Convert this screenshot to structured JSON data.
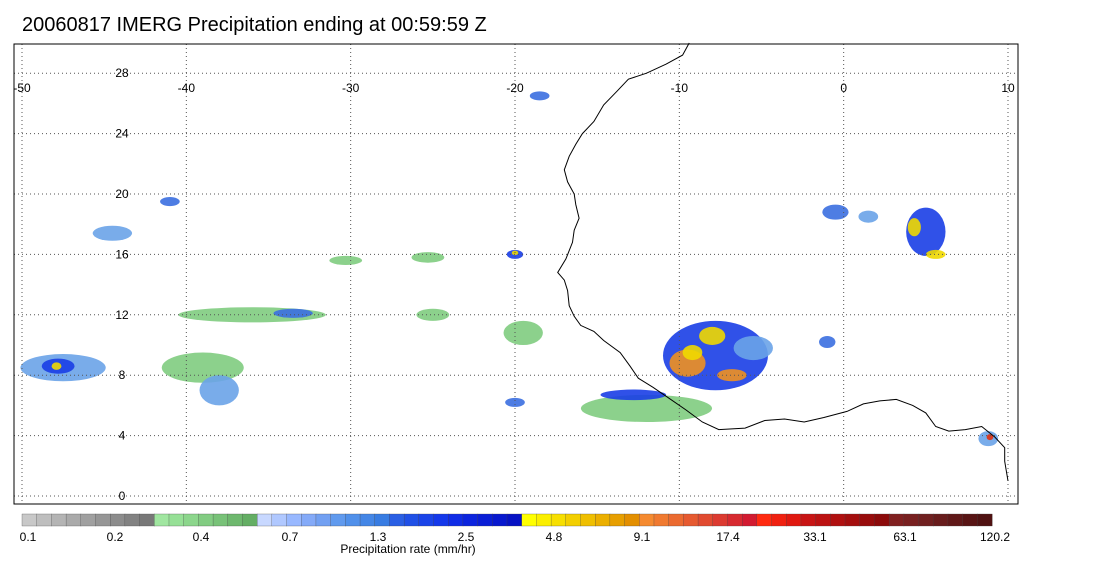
{
  "title": "20060817 IMERG Precipitation ending at 00:59:59 Z",
  "map": {
    "lon_range": [
      -50,
      10
    ],
    "lat_range": [
      -0.5,
      30
    ],
    "lon_ticks": [
      {
        "value": -50,
        "label": "-50"
      },
      {
        "value": -40,
        "label": "-40"
      },
      {
        "value": -30,
        "label": "-30"
      },
      {
        "value": -20,
        "label": "-20"
      },
      {
        "value": -10,
        "label": "-10"
      },
      {
        "value": 0,
        "label": "0"
      },
      {
        "value": 10,
        "label": "10"
      }
    ],
    "lat_ticks": [
      {
        "value": 0,
        "label": "0"
      },
      {
        "value": 4,
        "label": "4"
      },
      {
        "value": 8,
        "label": "8"
      },
      {
        "value": 12,
        "label": "12"
      },
      {
        "value": 16,
        "label": "16"
      },
      {
        "value": 20,
        "label": "20"
      },
      {
        "value": 24,
        "label": "24"
      },
      {
        "value": 28,
        "label": "28"
      }
    ],
    "gridline_color": "#555555",
    "coast_color": "#000000",
    "coastline": [
      [
        -9.4,
        30.0
      ],
      [
        -9.8,
        29.2
      ],
      [
        -10.8,
        28.6
      ],
      [
        -12.0,
        28.0
      ],
      [
        -13.1,
        27.6
      ],
      [
        -13.8,
        26.8
      ],
      [
        -14.6,
        25.9
      ],
      [
        -15.2,
        24.8
      ],
      [
        -15.9,
        24.0
      ],
      [
        -16.3,
        23.3
      ],
      [
        -16.7,
        22.5
      ],
      [
        -17.0,
        21.6
      ],
      [
        -16.8,
        20.8
      ],
      [
        -16.4,
        20.0
      ],
      [
        -16.3,
        19.3
      ],
      [
        -16.1,
        18.4
      ],
      [
        -16.4,
        17.6
      ],
      [
        -16.5,
        16.8
      ],
      [
        -16.9,
        15.7
      ],
      [
        -17.4,
        14.8
      ],
      [
        -17.0,
        14.3
      ],
      [
        -16.8,
        13.6
      ],
      [
        -16.7,
        12.6
      ],
      [
        -16.4,
        11.9
      ],
      [
        -16.0,
        11.3
      ],
      [
        -15.2,
        10.9
      ],
      [
        -14.6,
        10.3
      ],
      [
        -13.6,
        9.5
      ],
      [
        -13.0,
        8.6
      ],
      [
        -12.5,
        7.8
      ],
      [
        -11.6,
        7.2
      ],
      [
        -10.8,
        6.6
      ],
      [
        -9.6,
        5.7
      ],
      [
        -8.6,
        4.9
      ],
      [
        -7.6,
        4.4
      ],
      [
        -6.0,
        4.5
      ],
      [
        -4.8,
        5.0
      ],
      [
        -3.6,
        5.1
      ],
      [
        -2.4,
        4.9
      ],
      [
        -1.2,
        5.2
      ],
      [
        0.2,
        5.6
      ],
      [
        1.2,
        6.1
      ],
      [
        2.2,
        6.3
      ],
      [
        3.2,
        6.4
      ],
      [
        4.2,
        6.0
      ],
      [
        5.0,
        5.5
      ],
      [
        5.6,
        4.6
      ],
      [
        6.4,
        4.3
      ],
      [
        7.4,
        4.4
      ],
      [
        8.4,
        4.6
      ],
      [
        9.2,
        3.9
      ],
      [
        9.8,
        3.2
      ],
      [
        9.8,
        2.3
      ],
      [
        10.0,
        1.0
      ]
    ],
    "rain_cells": [
      {
        "lon": -47.5,
        "lat": 8.5,
        "rx": 2.6,
        "ry": 0.9,
        "color": "#6aa3e8"
      },
      {
        "lon": -47.8,
        "lat": 8.6,
        "rx": 1.0,
        "ry": 0.5,
        "color": "#1a3ee6"
      },
      {
        "lon": -47.9,
        "lat": 8.6,
        "rx": 0.3,
        "ry": 0.25,
        "color": "#f0d800"
      },
      {
        "lon": -44.5,
        "lat": 17.4,
        "rx": 1.2,
        "ry": 0.5,
        "color": "#6aa3e8"
      },
      {
        "lon": -41.0,
        "lat": 19.5,
        "rx": 0.6,
        "ry": 0.3,
        "color": "#3b6fe0"
      },
      {
        "lon": -30.3,
        "lat": 15.6,
        "rx": 1.0,
        "ry": 0.3,
        "color": "#80cc80"
      },
      {
        "lon": -25.3,
        "lat": 15.8,
        "rx": 1.0,
        "ry": 0.35,
        "color": "#80cc80"
      },
      {
        "lon": -20.0,
        "lat": 16.0,
        "rx": 0.5,
        "ry": 0.3,
        "color": "#1a3ee6"
      },
      {
        "lon": -20.0,
        "lat": 16.1,
        "rx": 0.2,
        "ry": 0.15,
        "color": "#f0d800"
      },
      {
        "lon": -36.0,
        "lat": 12.0,
        "rx": 4.5,
        "ry": 0.5,
        "color": "#80cc80"
      },
      {
        "lon": -33.5,
        "lat": 12.1,
        "rx": 1.2,
        "ry": 0.3,
        "color": "#3b6fe0"
      },
      {
        "lon": -39.0,
        "lat": 8.5,
        "rx": 2.5,
        "ry": 1.0,
        "color": "#80cc80"
      },
      {
        "lon": -38.0,
        "lat": 7.0,
        "rx": 1.2,
        "ry": 1.0,
        "color": "#6aa3e8"
      },
      {
        "lon": -25.0,
        "lat": 12.0,
        "rx": 1.0,
        "ry": 0.4,
        "color": "#80cc80"
      },
      {
        "lon": -19.5,
        "lat": 10.8,
        "rx": 1.2,
        "ry": 0.8,
        "color": "#80cc80"
      },
      {
        "lon": -20.0,
        "lat": 6.2,
        "rx": 0.6,
        "ry": 0.3,
        "color": "#3b6fe0"
      },
      {
        "lon": -12.0,
        "lat": 5.8,
        "rx": 4.0,
        "ry": 0.9,
        "color": "#80cc80"
      },
      {
        "lon": -12.8,
        "lat": 6.7,
        "rx": 2.0,
        "ry": 0.35,
        "color": "#1a3ee6"
      },
      {
        "lon": -7.8,
        "lat": 9.3,
        "rx": 3.2,
        "ry": 2.3,
        "color": "#1a3ee6"
      },
      {
        "lon": -9.5,
        "lat": 8.8,
        "rx": 1.1,
        "ry": 0.9,
        "color": "#f09020"
      },
      {
        "lon": -9.2,
        "lat": 9.5,
        "rx": 0.6,
        "ry": 0.5,
        "color": "#f0d800"
      },
      {
        "lon": -6.8,
        "lat": 8.0,
        "rx": 0.9,
        "ry": 0.4,
        "color": "#f09020"
      },
      {
        "lon": -8.0,
        "lat": 10.6,
        "rx": 0.8,
        "ry": 0.6,
        "color": "#f0d800"
      },
      {
        "lon": -5.5,
        "lat": 9.8,
        "rx": 1.2,
        "ry": 0.8,
        "color": "#6aa3e8"
      },
      {
        "lon": -1.0,
        "lat": 10.2,
        "rx": 0.5,
        "ry": 0.4,
        "color": "#3b6fe0"
      },
      {
        "lon": -0.5,
        "lat": 18.8,
        "rx": 0.8,
        "ry": 0.5,
        "color": "#3b6fe0"
      },
      {
        "lon": 1.5,
        "lat": 18.5,
        "rx": 0.6,
        "ry": 0.4,
        "color": "#6aa3e8"
      },
      {
        "lon": 5.0,
        "lat": 17.5,
        "rx": 1.2,
        "ry": 1.6,
        "color": "#1a3ee6"
      },
      {
        "lon": 4.3,
        "lat": 17.8,
        "rx": 0.4,
        "ry": 0.6,
        "color": "#f0d800"
      },
      {
        "lon": 5.6,
        "lat": 16.0,
        "rx": 0.6,
        "ry": 0.3,
        "color": "#f0d800"
      },
      {
        "lon": 8.8,
        "lat": 3.8,
        "rx": 0.6,
        "ry": 0.5,
        "color": "#6aa3e8"
      },
      {
        "lon": 8.9,
        "lat": 3.9,
        "rx": 0.2,
        "ry": 0.2,
        "color": "#e03010"
      },
      {
        "lon": -18.5,
        "lat": 26.5,
        "rx": 0.6,
        "ry": 0.3,
        "color": "#3b6fe0"
      }
    ]
  },
  "colorbar": {
    "caption": "Precipitation rate (mm/hr)",
    "colors": [
      "#c8c8c8",
      "#bebebe",
      "#b4b4b4",
      "#aaaaaa",
      "#a0a0a0",
      "#969696",
      "#8c8c8c",
      "#828282",
      "#787878",
      "#a0e6a0",
      "#96e096",
      "#8cd68c",
      "#82cc82",
      "#78c278",
      "#6eb86e",
      "#64ae64",
      "#c8d8ff",
      "#b0c8ff",
      "#98b8ff",
      "#84aaf8",
      "#72a0f2",
      "#609aee",
      "#5090ea",
      "#4486e6",
      "#387ce2",
      "#2a5fe4",
      "#2050e6",
      "#1a44e8",
      "#1438ea",
      "#102ce6",
      "#0c24de",
      "#0a1ed6",
      "#0818ce",
      "#0612c4",
      "#ffff00",
      "#fbef00",
      "#f7df00",
      "#f3cf00",
      "#efbf00",
      "#ebaf00",
      "#e79f00",
      "#e38f00",
      "#f58a30",
      "#f07a30",
      "#eb6a30",
      "#e65a30",
      "#e14a30",
      "#dc3a30",
      "#d72a30",
      "#d21a30",
      "#ff2a10",
      "#f02010",
      "#e01810",
      "#c81414",
      "#bc1212",
      "#b01010",
      "#a40e0e",
      "#980c0c",
      "#8c0a0a",
      "#802020",
      "#782020",
      "#702020",
      "#681c1c",
      "#601818",
      "#581414",
      "#501212"
    ],
    "labels": [
      "0.1",
      "0.2",
      "0.4",
      "0.7",
      "1.3",
      "2.5",
      "4.8",
      "9.1",
      "17.4",
      "33.1",
      "63.1",
      "120.2"
    ]
  }
}
